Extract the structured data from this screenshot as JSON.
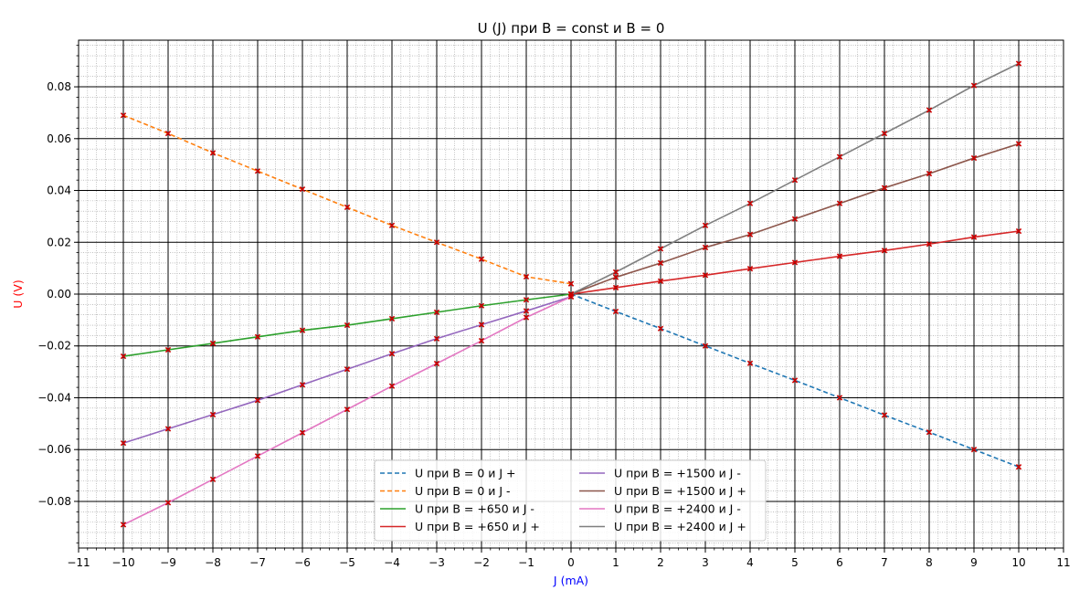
{
  "chart_data": {
    "type": "line",
    "title": "U (J) при B = const и B = 0",
    "xlabel": "J (mA)",
    "ylabel": "U (V)",
    "xlabel_color": "#0000ff",
    "ylabel_color": "#ff0000",
    "xlim": [
      -11,
      11
    ],
    "ylim": [
      -0.098,
      0.098
    ],
    "xticks": [
      -11,
      -10,
      -9,
      -8,
      -7,
      -6,
      -5,
      -4,
      -3,
      -2,
      -1,
      0,
      1,
      2,
      3,
      4,
      5,
      6,
      7,
      8,
      9,
      10,
      11
    ],
    "yticks": [
      -0.08,
      -0.06,
      -0.04,
      -0.02,
      0.0,
      0.02,
      0.04,
      0.06,
      0.08
    ],
    "ytick_labels": [
      "−0.08",
      "−0.06",
      "−0.04",
      "−0.02",
      "0.00",
      "0.02",
      "0.04",
      "0.06",
      "0.08"
    ],
    "xtick_labels": [
      "−11",
      "−10",
      "−9",
      "−8",
      "−7",
      "−6",
      "−5",
      "−4",
      "−3",
      "−2",
      "−1",
      "0",
      "1",
      "2",
      "3",
      "4",
      "5",
      "6",
      "7",
      "8",
      "9",
      "10",
      "11"
    ],
    "grid": true,
    "minor_grid": true,
    "legend_position": "bottom-center",
    "marker_color": "#cc0000",
    "series": [
      {
        "name": "U при B = 0 и J +",
        "color": "#1f77b4",
        "dashed": true,
        "x": [
          0,
          1,
          2,
          3,
          4,
          5,
          6,
          7,
          8,
          9,
          10
        ],
        "y": [
          0.0,
          -0.0067,
          -0.0133,
          -0.02,
          -0.0267,
          -0.0333,
          -0.04,
          -0.0467,
          -0.0533,
          -0.06,
          -0.0667
        ]
      },
      {
        "name": "U при B = 0 и J -",
        "color": "#ff7f0e",
        "dashed": true,
        "x": [
          -10,
          -9,
          -8,
          -7,
          -6,
          -5,
          -4,
          -3,
          -2,
          -1,
          0
        ],
        "y": [
          0.069,
          0.062,
          0.0545,
          0.0475,
          0.0405,
          0.0335,
          0.0265,
          0.02,
          0.0135,
          0.0067,
          0.004
        ]
      },
      {
        "name": "U при B = +650 и J -",
        "color": "#2ca02c",
        "dashed": false,
        "x": [
          -10,
          -9,
          -8,
          -7,
          -6,
          -5,
          -4,
          -3,
          -2,
          -1,
          0
        ],
        "y": [
          -0.024,
          -0.0215,
          -0.019,
          -0.0165,
          -0.014,
          -0.012,
          -0.0095,
          -0.007,
          -0.0045,
          -0.0022,
          0.0
        ]
      },
      {
        "name": "U при B = +650 и J +",
        "color": "#d62728",
        "dashed": false,
        "x": [
          0,
          1,
          2,
          3,
          4,
          5,
          6,
          7,
          8,
          9,
          10
        ],
        "y": [
          0.0,
          0.0025,
          0.005,
          0.0073,
          0.0098,
          0.0122,
          0.0146,
          0.0168,
          0.0193,
          0.022,
          0.0243
        ]
      },
      {
        "name": "U при B = +1500 и J -",
        "color": "#9467bd",
        "dashed": false,
        "x": [
          -10,
          -9,
          -8,
          -7,
          -6,
          -5,
          -4,
          -3,
          -2,
          -1,
          0
        ],
        "y": [
          -0.0575,
          -0.052,
          -0.0465,
          -0.041,
          -0.035,
          -0.029,
          -0.023,
          -0.0172,
          -0.0118,
          -0.0065,
          -0.001
        ]
      },
      {
        "name": "U при B = +1500 и J +",
        "color": "#8c564b",
        "dashed": false,
        "x": [
          0,
          1,
          2,
          3,
          4,
          5,
          6,
          7,
          8,
          9,
          10
        ],
        "y": [
          0.0,
          0.0065,
          0.012,
          0.018,
          0.023,
          0.029,
          0.035,
          0.041,
          0.0465,
          0.0525,
          0.058
        ]
      },
      {
        "name": "U при B = +2400 и J -",
        "color": "#e377c2",
        "dashed": false,
        "x": [
          -10,
          -9,
          -8,
          -7,
          -6,
          -5,
          -4,
          -3,
          -2,
          -1,
          0
        ],
        "y": [
          -0.089,
          -0.0805,
          -0.0715,
          -0.0625,
          -0.0535,
          -0.0445,
          -0.0355,
          -0.0268,
          -0.018,
          -0.009,
          -0.001
        ]
      },
      {
        "name": "U при B = +2400 и J +",
        "color": "#7f7f7f",
        "dashed": false,
        "x": [
          0,
          1,
          2,
          3,
          4,
          5,
          6,
          7,
          8,
          9,
          10
        ],
        "y": [
          0.0,
          0.0085,
          0.0175,
          0.0265,
          0.035,
          0.044,
          0.053,
          0.062,
          0.071,
          0.0805,
          0.089
        ]
      }
    ]
  }
}
